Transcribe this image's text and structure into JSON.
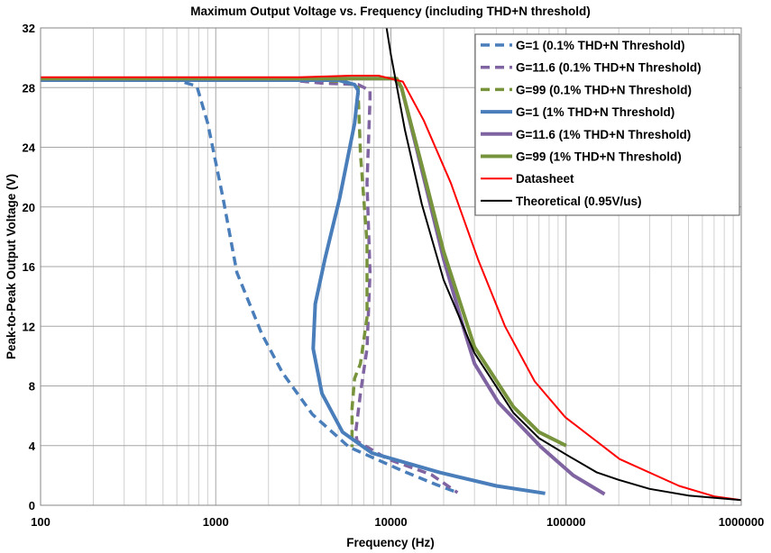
{
  "chart_data": {
    "type": "line",
    "title": "Maximum Output Voltage vs. Frequency (including THD+N threshold)",
    "xlabel": "Frequency (Hz)",
    "ylabel": "Peak-to-Peak Output Voltage (V)",
    "x_scale": "log",
    "xlim": [
      100,
      1000000
    ],
    "ylim": [
      0,
      32
    ],
    "x_ticks": [
      "100",
      "1000",
      "10000",
      "100000",
      "1000000"
    ],
    "y_ticks": [
      "0",
      "4",
      "8",
      "12",
      "16",
      "20",
      "24",
      "28",
      "32"
    ],
    "grid": true,
    "legend_position": "top-right",
    "series": [
      {
        "name": "G=1 (0.1% THD+N Threshold)",
        "color": "#4a7ebb",
        "style": "dashed",
        "points": [
          [
            100,
            28.5
          ],
          [
            600,
            28.5
          ],
          [
            780,
            28.1
          ],
          [
            900,
            25.6
          ],
          [
            1100,
            20.6
          ],
          [
            1320,
            15.6
          ],
          [
            1830,
            11.5
          ],
          [
            2400,
            8.9
          ],
          [
            3560,
            6.1
          ],
          [
            5770,
            3.9
          ],
          [
            11700,
            2.3
          ],
          [
            18000,
            1.4
          ],
          [
            24000,
            0.85
          ]
        ]
      },
      {
        "name": "G=11.6 (0.1% THD+N Threshold)",
        "color": "#8064a2",
        "style": "dashed",
        "points": [
          [
            100,
            28.6
          ],
          [
            2200,
            28.6
          ],
          [
            4000,
            28.3
          ],
          [
            6500,
            28.2
          ],
          [
            7600,
            27.8
          ],
          [
            7600,
            27.2
          ],
          [
            7300,
            21.6
          ],
          [
            7600,
            15.6
          ],
          [
            7300,
            10.5
          ],
          [
            6700,
            7.5
          ],
          [
            6300,
            4.9
          ],
          [
            6400,
            4.3
          ],
          [
            9600,
            3.1
          ],
          [
            17000,
            2.05
          ],
          [
            24000,
            0.85
          ]
        ]
      },
      {
        "name": "G=99 (0.1% THD+N Threshold)",
        "color": "#77933c",
        "style": "dashed",
        "points": [
          [
            100,
            28.6
          ],
          [
            2500,
            28.6
          ],
          [
            5500,
            28.4
          ],
          [
            6500,
            28.0
          ],
          [
            6500,
            27.6
          ],
          [
            6700,
            23.6
          ],
          [
            7300,
            17.6
          ],
          [
            7300,
            12.6
          ],
          [
            6700,
            9.5
          ],
          [
            6200,
            8.5
          ],
          [
            6000,
            6.5
          ],
          [
            6000,
            3.9
          ]
        ]
      },
      {
        "name": "G=1 (1% THD+N Threshold)",
        "color": "#4a7ebb",
        "style": "solid",
        "points": [
          [
            100,
            28.5
          ],
          [
            5000,
            28.5
          ],
          [
            6200,
            28.2
          ],
          [
            6500,
            27.8
          ],
          [
            6200,
            25.6
          ],
          [
            5100,
            20.6
          ],
          [
            4200,
            16.5
          ],
          [
            3700,
            13.5
          ],
          [
            3600,
            10.5
          ],
          [
            4040,
            7.5
          ],
          [
            5300,
            4.9
          ],
          [
            7800,
            3.5
          ],
          [
            19000,
            2.2
          ],
          [
            40000,
            1.3
          ],
          [
            76000,
            0.8
          ]
        ]
      },
      {
        "name": "G=11.6 (1% THD+N Threshold)",
        "color": "#8064a2",
        "style": "solid",
        "points": [
          [
            100,
            28.6
          ],
          [
            10500,
            28.6
          ],
          [
            11500,
            28.0
          ],
          [
            15000,
            22.5
          ],
          [
            20000,
            16.5
          ],
          [
            25800,
            12.0
          ],
          [
            30000,
            9.5
          ],
          [
            41000,
            6.9
          ],
          [
            72000,
            3.9
          ],
          [
            110000,
            2.0
          ],
          [
            166000,
            0.75
          ]
        ]
      },
      {
        "name": "G=99 (1% THD+N Threshold)",
        "color": "#77933c",
        "style": "solid",
        "points": [
          [
            100,
            28.6
          ],
          [
            10800,
            28.6
          ],
          [
            11500,
            28.0
          ],
          [
            15000,
            22.8
          ],
          [
            20000,
            17.0
          ],
          [
            30000,
            10.6
          ],
          [
            50000,
            6.6
          ],
          [
            70000,
            4.9
          ],
          [
            100000,
            4.0
          ]
        ]
      },
      {
        "name": "Datasheet",
        "color": "#ff0000",
        "style": "thin",
        "points": [
          [
            100,
            28.7
          ],
          [
            3000,
            28.7
          ],
          [
            6000,
            28.8
          ],
          [
            8500,
            28.8
          ],
          [
            11700,
            28.4
          ],
          [
            15400,
            25.8
          ],
          [
            22000,
            21.6
          ],
          [
            31400,
            16.5
          ],
          [
            44800,
            12.0
          ],
          [
            66200,
            8.3
          ],
          [
            99000,
            5.9
          ],
          [
            202000,
            3.1
          ],
          [
            442000,
            1.3
          ],
          [
            700000,
            0.6
          ],
          [
            1000000,
            0.35
          ]
        ]
      },
      {
        "name": "Theoretical (0.95V/us)",
        "color": "#000000",
        "style": "thin",
        "points": [
          [
            9450,
            32
          ],
          [
            10000,
            30.2
          ],
          [
            12000,
            25.2
          ],
          [
            15000,
            20.2
          ],
          [
            20000,
            15.1
          ],
          [
            30000,
            10.2
          ],
          [
            50000,
            6.2
          ],
          [
            70000,
            4.5
          ],
          [
            100000,
            3.4
          ],
          [
            150000,
            2.2
          ],
          [
            200000,
            1.7
          ],
          [
            300000,
            1.1
          ],
          [
            500000,
            0.65
          ],
          [
            1000000,
            0.35
          ]
        ]
      }
    ]
  }
}
